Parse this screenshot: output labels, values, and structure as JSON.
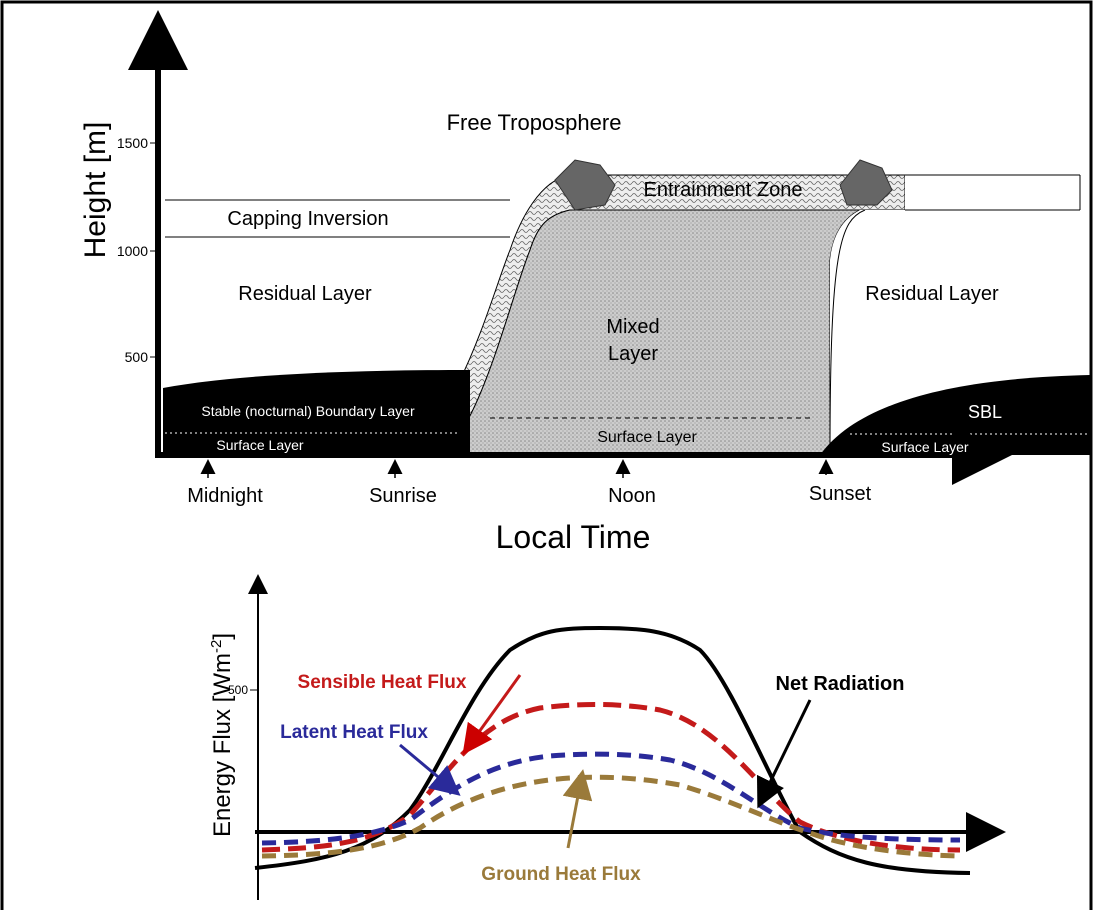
{
  "top": {
    "y_axis_label": "Height [m]",
    "y_ticks": [
      "1500",
      "1000",
      "500"
    ],
    "x_axis_label": "Local Time",
    "time_labels": [
      "Midnight",
      "Sunrise",
      "Noon",
      "Sunset"
    ],
    "regions": {
      "free_troposphere": "Free Troposphere",
      "entrainment_zone": "Entrainment Zone",
      "capping_inversion": "Capping Inversion",
      "residual_layer_left": "Residual Layer",
      "residual_layer_right": "Residual Layer",
      "mixed_layer": [
        "Mixed",
        "Layer"
      ],
      "stable_boundary_layer": "Stable (nocturnal) Boundary Layer",
      "sbl": "SBL",
      "surface_layer_left": "Surface Layer",
      "surface_layer_middle": "Surface Layer",
      "surface_layer_right": "Surface Layer"
    }
  },
  "bottom": {
    "y_axis_label": {
      "text": "Energy Flux [Wm",
      "superscript": "-2",
      "close": "]"
    },
    "y_ticks": [
      "500"
    ],
    "labels": {
      "sensible": "Sensible Heat Flux",
      "latent": "Latent Heat Flux",
      "net": "Net Radiation",
      "ground": "Ground Heat Flux"
    }
  }
}
